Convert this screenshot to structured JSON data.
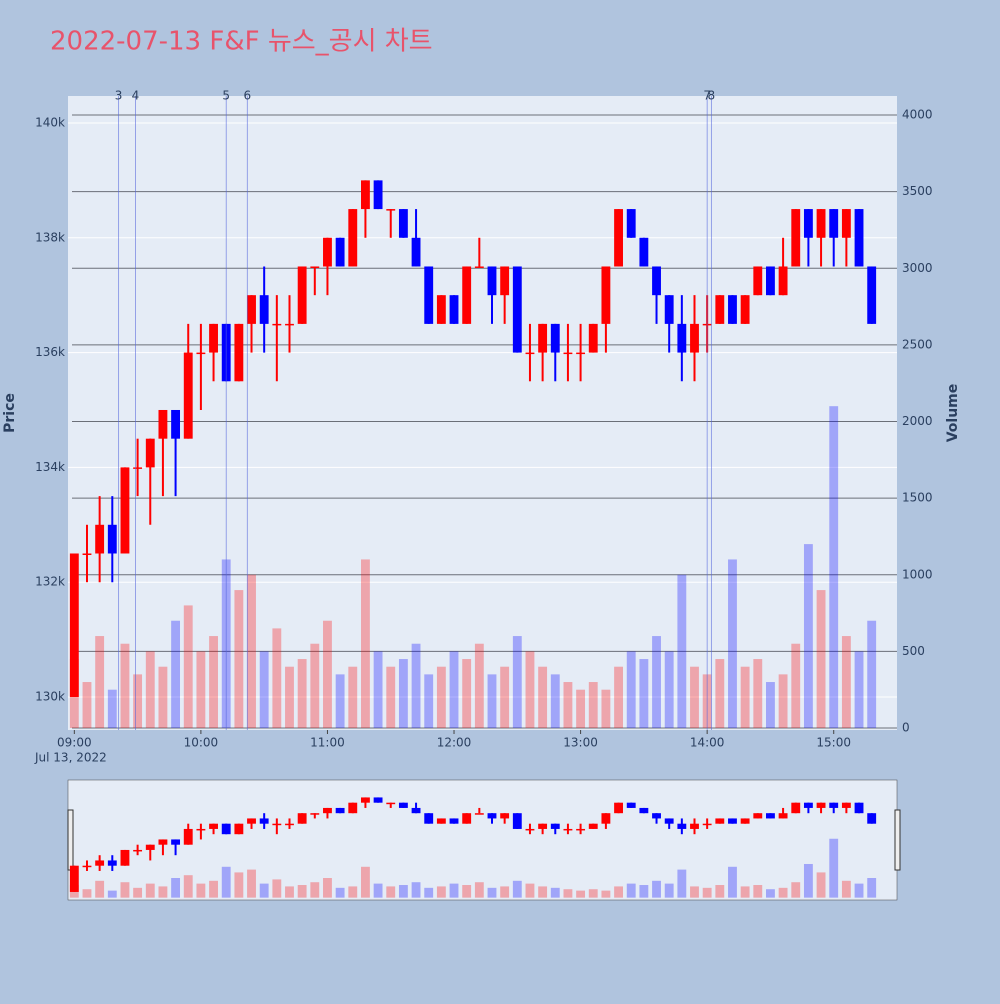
{
  "chart_data": {
    "type": "candlestick",
    "title": "2022-07-13 F&F 뉴스_공시 차트",
    "x": [
      "09:00",
      "09:06",
      "09:12",
      "09:18",
      "09:24",
      "09:30",
      "09:36",
      "09:42",
      "09:48",
      "09:54",
      "10:00",
      "10:06",
      "10:12",
      "10:18",
      "10:24",
      "10:30",
      "10:36",
      "10:42",
      "10:48",
      "10:54",
      "11:00",
      "11:06",
      "11:12",
      "11:18",
      "11:24",
      "11:30",
      "11:36",
      "11:42",
      "11:48",
      "11:54",
      "12:00",
      "12:06",
      "12:12",
      "12:18",
      "12:24",
      "12:30",
      "12:36",
      "12:42",
      "12:48",
      "12:54",
      "13:00",
      "13:06",
      "13:12",
      "13:18",
      "13:24",
      "13:30",
      "13:36",
      "13:42",
      "13:48",
      "13:54",
      "14:00",
      "14:06",
      "14:12",
      "14:18",
      "14:24",
      "14:30",
      "14:36",
      "14:42",
      "14:48",
      "14:54",
      "15:00",
      "15:06",
      "15:12",
      "15:18"
    ],
    "open": [
      130000,
      132500,
      132500,
      133000,
      132500,
      134000,
      134000,
      134500,
      135000,
      134500,
      136000,
      136000,
      136500,
      135500,
      136500,
      137000,
      136500,
      136500,
      136500,
      137500,
      137500,
      138000,
      137500,
      138500,
      139000,
      138500,
      138500,
      138000,
      137500,
      136500,
      137000,
      136500,
      137500,
      137500,
      137000,
      137500,
      136000,
      136000,
      136500,
      136000,
      136000,
      136000,
      136500,
      137500,
      138500,
      138000,
      137500,
      137000,
      136500,
      136000,
      136500,
      136500,
      137000,
      136500,
      137000,
      137500,
      137000,
      137500,
      138500,
      138000,
      138500,
      138000,
      138500,
      137500
    ],
    "high": [
      132500,
      133000,
      133500,
      133500,
      134000,
      134500,
      134500,
      135000,
      135000,
      136500,
      136500,
      136500,
      136500,
      136500,
      137000,
      137500,
      137000,
      137000,
      137500,
      137500,
      138000,
      138000,
      138500,
      139000,
      139000,
      138500,
      138500,
      138500,
      137500,
      137000,
      137000,
      137500,
      138000,
      137500,
      137500,
      137500,
      136500,
      136500,
      136500,
      136500,
      136500,
      136500,
      137500,
      138500,
      138500,
      138000,
      137500,
      137000,
      137000,
      137000,
      137000,
      137000,
      137000,
      137000,
      137500,
      137500,
      138000,
      138500,
      138500,
      138500,
      138500,
      138500,
      138500,
      137500
    ],
    "low": [
      130000,
      132000,
      132000,
      132000,
      132500,
      133500,
      133000,
      133500,
      133500,
      134500,
      135000,
      135500,
      135500,
      135500,
      136000,
      136000,
      135500,
      136000,
      136500,
      137000,
      137000,
      137500,
      137500,
      138000,
      138500,
      138000,
      138000,
      137500,
      136500,
      136500,
      136500,
      136500,
      137500,
      136500,
      136500,
      136000,
      135500,
      135500,
      135500,
      135500,
      135500,
      136000,
      136000,
      137500,
      138000,
      137500,
      136500,
      136000,
      135500,
      135500,
      136000,
      136500,
      136500,
      136500,
      137000,
      137000,
      137000,
      137500,
      137500,
      137500,
      137500,
      137500,
      137500,
      136500
    ],
    "close": [
      132500,
      132500,
      133000,
      132500,
      134000,
      134000,
      134500,
      135000,
      134500,
      136000,
      136000,
      136500,
      135500,
      136500,
      137000,
      136500,
      136500,
      136500,
      137500,
      137500,
      138000,
      137500,
      138500,
      139000,
      138500,
      138500,
      138000,
      137500,
      136500,
      137000,
      136500,
      137500,
      137500,
      137000,
      137500,
      136000,
      136000,
      136500,
      136000,
      136000,
      136000,
      136500,
      137500,
      138500,
      138000,
      137500,
      137000,
      136500,
      136000,
      136500,
      136500,
      137000,
      136500,
      137000,
      137500,
      137000,
      137500,
      138500,
      138000,
      138500,
      138000,
      138500,
      137500,
      136500
    ],
    "volume": [
      450,
      300,
      600,
      250,
      550,
      350,
      500,
      400,
      700,
      800,
      500,
      600,
      1100,
      900,
      1000,
      500,
      650,
      400,
      450,
      550,
      700,
      350,
      400,
      1100,
      500,
      400,
      450,
      550,
      350,
      400,
      500,
      450,
      550,
      350,
      400,
      600,
      500,
      400,
      350,
      300,
      250,
      300,
      250,
      400,
      500,
      450,
      600,
      500,
      1000,
      400,
      350,
      450,
      1100,
      400,
      450,
      300,
      350,
      550,
      1200,
      900,
      2100,
      600,
      500,
      700
    ],
    "increasing_color": "#ff0000",
    "decreasing_color": "#0000ff",
    "xlim": [
      "08:57",
      "15:30"
    ],
    "xticks": [
      "09:00",
      "10:00",
      "11:00",
      "12:00",
      "13:00",
      "14:00",
      "15:00"
    ],
    "x_date_label": "Jul 13, 2022",
    "ylabel": "Price",
    "y2label": "Volume",
    "ylim": [
      129425,
      140470
    ],
    "yticks": [
      {
        "value": 130000,
        "label": "130k"
      },
      {
        "value": 132000,
        "label": "132k"
      },
      {
        "value": 134000,
        "label": "134k"
      },
      {
        "value": 136000,
        "label": "136k"
      },
      {
        "value": 138000,
        "label": "138k"
      },
      {
        "value": 140000,
        "label": "140k"
      }
    ],
    "y2lim": [
      -13,
      4124
    ],
    "y2ticks": [
      0,
      500,
      1000,
      1500,
      2000,
      2500,
      3000,
      3500,
      4000
    ],
    "news": [
      {
        "time": "09:21",
        "label": "3"
      },
      {
        "time": "09:29",
        "label": "4"
      },
      {
        "time": "10:12",
        "label": "5"
      },
      {
        "time": "10:22",
        "label": "6"
      },
      {
        "time": "14:00",
        "label": "7"
      },
      {
        "time": "14:02",
        "label": "8"
      }
    ],
    "grid": true,
    "range_slider": true
  }
}
